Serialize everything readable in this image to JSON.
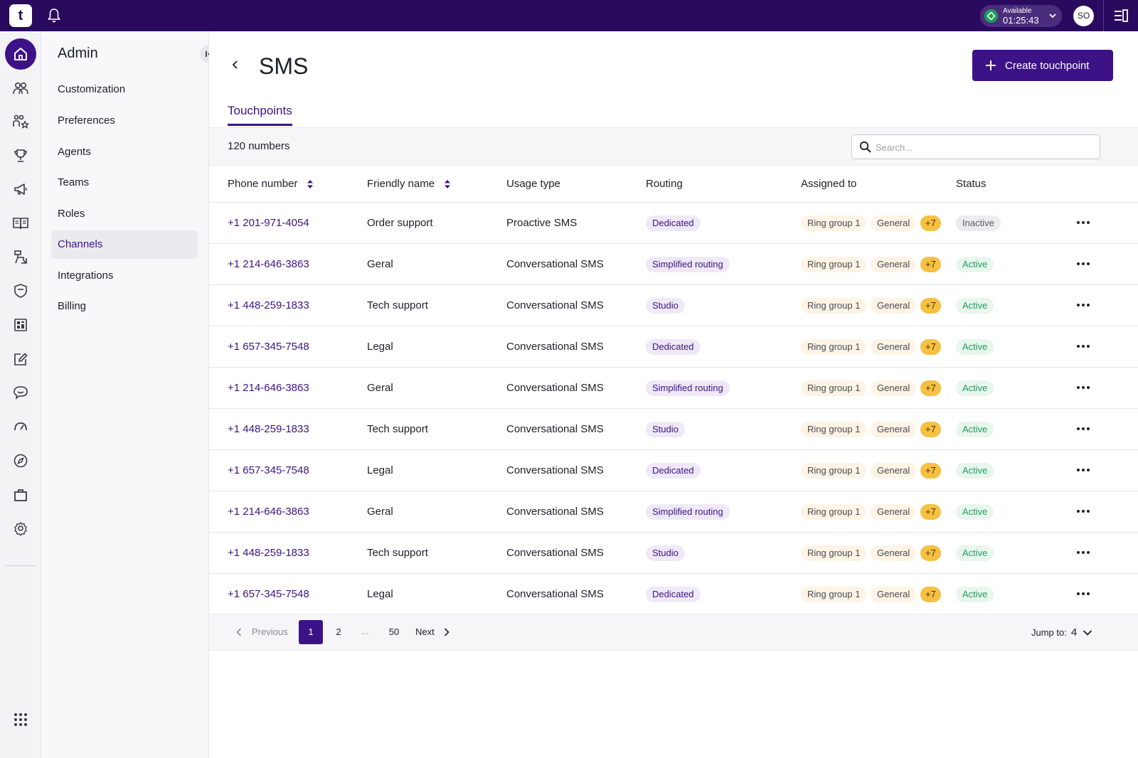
{
  "topbar": {
    "logo_text": "t",
    "status_label": "Available",
    "status_time": "01:25:43",
    "avatar_initials": "SO"
  },
  "rail": {
    "icons": [
      "home-icon",
      "contacts-icon",
      "agents-ranking-icon",
      "trophy-icon",
      "megaphone-icon",
      "book-icon",
      "workflow-icon",
      "shield-icon",
      "dashboard-icon",
      "edit-icon",
      "chat-icon",
      "speedometer-icon",
      "compass-icon",
      "briefcase-icon",
      "settings-icon"
    ],
    "apps_icon": "apps-grid-icon"
  },
  "sidebar": {
    "title": "Admin",
    "items": [
      {
        "label": "Customization"
      },
      {
        "label": "Preferences"
      },
      {
        "label": "Agents"
      },
      {
        "label": "Teams"
      },
      {
        "label": "Roles"
      },
      {
        "label": "Channels",
        "active": true
      },
      {
        "label": "Integrations"
      },
      {
        "label": "Billing"
      }
    ]
  },
  "page": {
    "title": "SMS",
    "create_label": "Create touchpoint",
    "tab_label": "Touchpoints",
    "count_label": "120 numbers",
    "search_placeholder": "Search..."
  },
  "table": {
    "columns": [
      "Phone number",
      "Friendly name",
      "Usage type",
      "Routing",
      "Assigned to",
      "Status"
    ],
    "rows": [
      {
        "phone": "+1 201-971-4054",
        "name": "Order support",
        "usage": "Proactive SMS",
        "routing": "Dedicated",
        "group": "Ring group 1",
        "general": "General",
        "more": "+7",
        "status": "Inactive"
      },
      {
        "phone": "+1 214-646-3863",
        "name": "Geral",
        "usage": "Conversational SMS",
        "routing": "Simplified routing",
        "group": "Ring group 1",
        "general": "General",
        "more": "+7",
        "status": "Active"
      },
      {
        "phone": "+1 448-259-1833",
        "name": "Tech support",
        "usage": "Conversational SMS",
        "routing": "Studio",
        "group": "Ring group 1",
        "general": "General",
        "more": "+7",
        "status": "Active"
      },
      {
        "phone": "+1 657-345-7548",
        "name": "Legal",
        "usage": "Conversational SMS",
        "routing": "Dedicated",
        "group": "Ring group 1",
        "general": "General",
        "more": "+7",
        "status": "Active"
      },
      {
        "phone": "+1 214-646-3863",
        "name": "Geral",
        "usage": "Conversational SMS",
        "routing": "Simplified routing",
        "group": "Ring group 1",
        "general": "General",
        "more": "+7",
        "status": "Active"
      },
      {
        "phone": "+1 448-259-1833",
        "name": "Tech support",
        "usage": "Conversational SMS",
        "routing": "Studio",
        "group": "Ring group 1",
        "general": "General",
        "more": "+7",
        "status": "Active"
      },
      {
        "phone": "+1 657-345-7548",
        "name": "Legal",
        "usage": "Conversational SMS",
        "routing": "Dedicated",
        "group": "Ring group 1",
        "general": "General",
        "more": "+7",
        "status": "Active"
      },
      {
        "phone": "+1 214-646-3863",
        "name": "Geral",
        "usage": "Conversational SMS",
        "routing": "Simplified routing",
        "group": "Ring group 1",
        "general": "General",
        "more": "+7",
        "status": "Active"
      },
      {
        "phone": "+1 448-259-1833",
        "name": "Tech support",
        "usage": "Conversational SMS",
        "routing": "Studio",
        "group": "Ring group 1",
        "general": "General",
        "more": "+7",
        "status": "Active"
      },
      {
        "phone": "+1 657-345-7548",
        "name": "Legal",
        "usage": "Conversational SMS",
        "routing": "Dedicated",
        "group": "Ring group 1",
        "general": "General",
        "more": "+7",
        "status": "Active"
      }
    ]
  },
  "pagination": {
    "previous_label": "Previous",
    "pages": [
      "1",
      "2",
      "50"
    ],
    "current_page": "1",
    "ellipsis": "...",
    "next_label": "Next",
    "jump_label": "Jump to:",
    "jump_value": "4"
  },
  "colors": {
    "brand": "#2a0a5e",
    "accent": "#3d1287",
    "active": "#1f9d5a",
    "badge_more": "#f6c042"
  }
}
